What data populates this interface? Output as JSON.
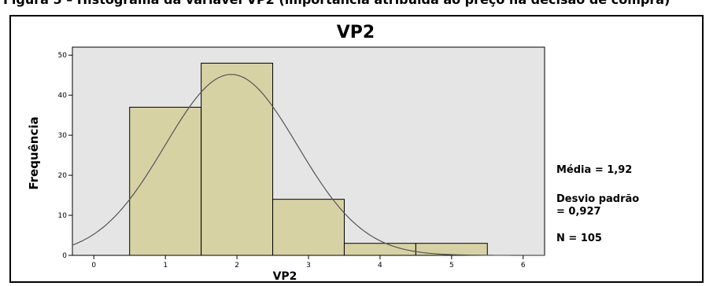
{
  "caption": "Figura 5 – Histograma da variável VP2 (importância atribuída ao preço na decisão de compra)",
  "chart_data": {
    "type": "bar",
    "title": "VP2",
    "xlabel": "VP2",
    "ylabel": "Frequência",
    "bin_edges": [
      0.5,
      1.5,
      2.5,
      3.5,
      4.5,
      5.5
    ],
    "values": [
      37,
      48,
      14,
      3,
      3
    ],
    "xlim": [
      -0.3,
      6.3
    ],
    "ylim": [
      0,
      52
    ],
    "x_ticks": [
      "0",
      "1",
      "2",
      "3",
      "4",
      "5",
      "6"
    ],
    "y_ticks": [
      "0",
      "10",
      "20",
      "30",
      "40",
      "50"
    ],
    "normal_curve": {
      "mean": 1.92,
      "sd": 0.927,
      "n": 105,
      "bin_width": 1
    },
    "stats": {
      "mean_label": "Média = 1,92",
      "sd_label_line1": "Desvio padrão",
      "sd_label_line2": "= 0,927",
      "n_label": "N = 105"
    },
    "colors": {
      "bar_fill": "#d6d2a4",
      "plot_bg": "#e5e5e5",
      "curve": "#555555"
    },
    "grid": false,
    "legend": "none"
  }
}
